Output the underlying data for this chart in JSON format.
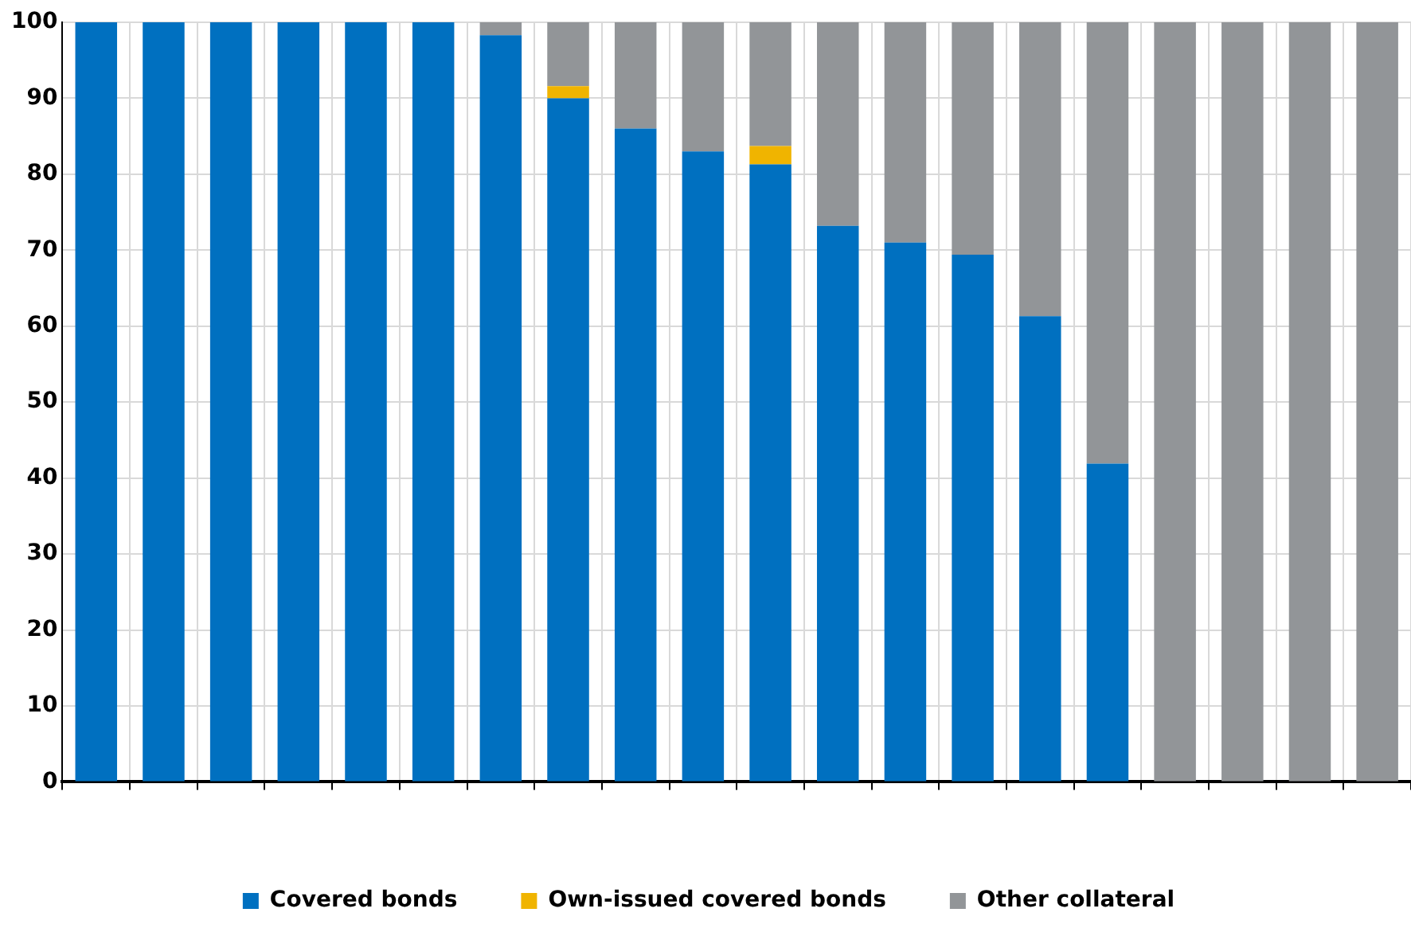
{
  "chart_data": {
    "type": "bar",
    "stacked": true,
    "categories": [
      null,
      null,
      null,
      null,
      null,
      null,
      null,
      null,
      null,
      null,
      null,
      null,
      null,
      null,
      null,
      null,
      null,
      null,
      null,
      null
    ],
    "series": [
      {
        "name": "Covered bonds",
        "color": "#0070c0",
        "values": [
          100,
          100,
          100,
          100,
          100,
          100,
          98.3,
          90,
          86,
          83,
          81.3,
          73.2,
          71,
          69.4,
          61.3,
          41.9,
          0,
          0,
          0,
          0
        ]
      },
      {
        "name": "Own-issued covered bonds",
        "color": "#f0b400",
        "values": [
          0,
          0,
          0,
          0,
          0,
          0,
          0,
          1.6,
          0,
          0,
          2.4,
          0,
          0,
          0,
          0,
          0,
          0,
          0,
          0,
          0
        ]
      },
      {
        "name": "Other collateral",
        "color": "#929598",
        "values": [
          0,
          0,
          0,
          0,
          0,
          0,
          1.7,
          8.4,
          14,
          17,
          16.3,
          26.8,
          29,
          30.6,
          38.7,
          58.1,
          100,
          100,
          100,
          100
        ]
      }
    ],
    "ylim": [
      0,
      100
    ],
    "yticks": [
      0,
      10,
      20,
      30,
      40,
      50,
      60,
      70,
      80,
      90,
      100
    ],
    "grid": true,
    "legend": "bottom"
  }
}
